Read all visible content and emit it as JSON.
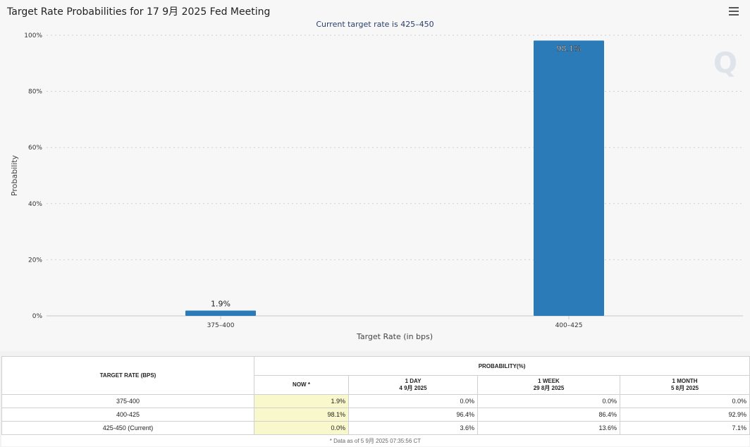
{
  "header": {
    "title": "Target Rate Probabilities for 17 9月 2025 Fed Meeting"
  },
  "chart_data": {
    "type": "bar",
    "subtitle": "Current target rate is 425–450",
    "categories": [
      "375–400",
      "400–425"
    ],
    "values": [
      1.9,
      98.1
    ],
    "data_labels": [
      "1.9%",
      "98.1%"
    ],
    "xlabel": "Target Rate (in bps)",
    "ylabel": "Probability",
    "ylim": [
      0,
      100
    ],
    "yticks": [
      "0%",
      "20%",
      "40%",
      "60%",
      "80%",
      "100%"
    ],
    "grid": true,
    "bar_color": "#2b7bb9",
    "watermark": "Q"
  },
  "table": {
    "col_rate_header": "TARGET RATE (BPS)",
    "col_prob_header": "PROBABILITY(%)",
    "sub_headers": [
      {
        "line1": "NOW *",
        "line2": ""
      },
      {
        "line1": "1 DAY",
        "line2": "4 9月 2025"
      },
      {
        "line1": "1 WEEK",
        "line2": "29 8月 2025"
      },
      {
        "line1": "1 MONTH",
        "line2": "5 8月 2025"
      }
    ],
    "rows": [
      {
        "rate": "375-400",
        "now": "1.9%",
        "day": "0.0%",
        "week": "0.0%",
        "month": "0.0%"
      },
      {
        "rate": "400-425",
        "now": "98.1%",
        "day": "96.4%",
        "week": "86.4%",
        "month": "92.9%"
      },
      {
        "rate": "425-450 (Current)",
        "now": "0.0%",
        "day": "3.6%",
        "week": "13.6%",
        "month": "7.1%"
      }
    ],
    "footnote": "* Data as of 5 9月 2025 07:35:56 CT"
  }
}
